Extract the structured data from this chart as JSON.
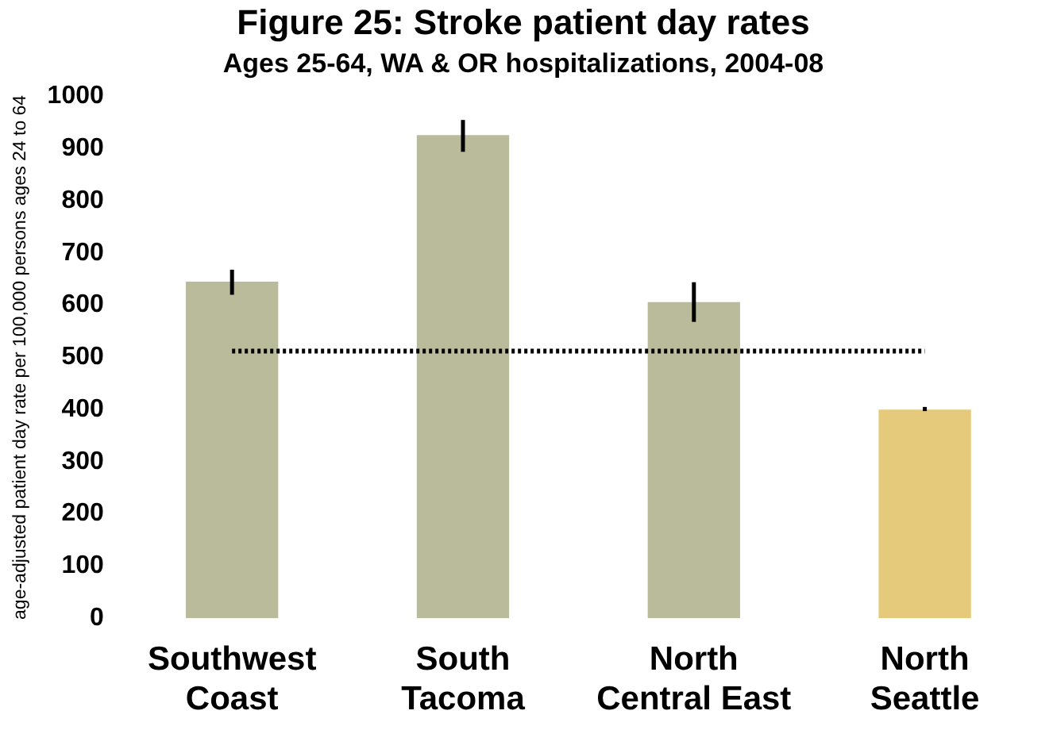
{
  "chart_data": {
    "type": "bar",
    "title": "Figure 25: Stroke patient day rates",
    "subtitle": "Ages 25-64, WA & OR hospitalizations, 2004-08",
    "ylabel": "age-adjusted patient day rate per 100,000 persons ages 24 to 64",
    "categories": [
      "Southwest\nCoast",
      "South\nTacoma",
      "North\nCentral East",
      "North\nSeattle"
    ],
    "values": [
      645,
      926,
      606,
      400
    ],
    "colors": [
      "#babb9b",
      "#babb9b",
      "#babb9b",
      "#e5ca7c"
    ],
    "errors": [
      [
        620,
        668
      ],
      [
        894,
        955
      ],
      [
        568,
        644
      ],
      [
        397,
        405
      ]
    ],
    "ref_lines": [
      {
        "axis": "y",
        "value": 512,
        "color": "#000000",
        "line_style": "dotted"
      }
    ],
    "ylim": [
      0,
      1000
    ],
    "yticks": [
      0,
      100,
      200,
      300,
      400,
      500,
      600,
      700,
      800,
      900,
      1000
    ],
    "grid": false,
    "legend": false
  }
}
